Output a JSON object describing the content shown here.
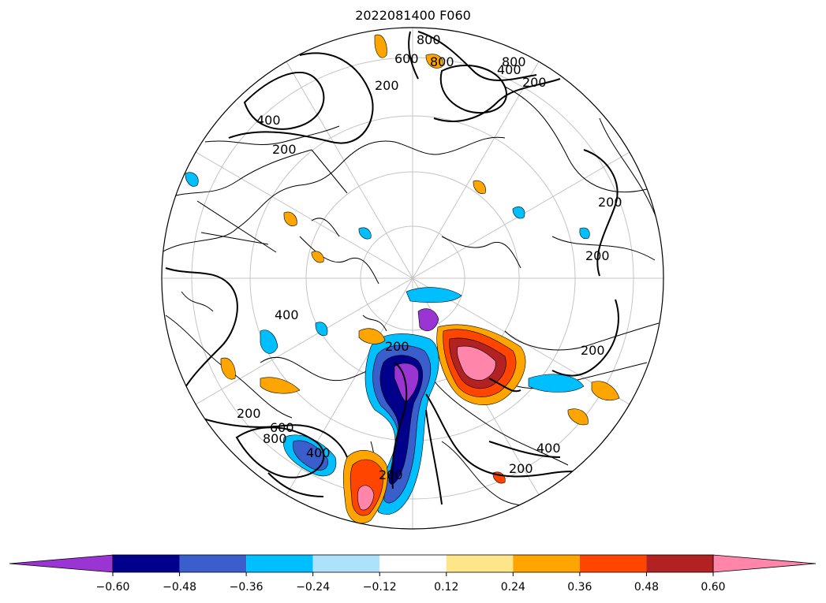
{
  "title": "2022081400 F060",
  "map": {
    "projection": "north-polar-stereographic",
    "contour_labels": [
      "800",
      "600",
      "800",
      "800",
      "400",
      "200",
      "200",
      "400",
      "200",
      "200",
      "200",
      "200",
      "400",
      "200",
      "200",
      "600",
      "800",
      "400",
      "200",
      "400",
      "200"
    ]
  },
  "colorbar": {
    "extend": "both",
    "tick_labels": [
      "−0.60",
      "−0.48",
      "−0.36",
      "−0.24",
      "−0.12",
      "0.12",
      "0.24",
      "0.36",
      "0.48",
      "0.60"
    ],
    "colors": [
      "#9a35d3",
      "#00008b",
      "#3a5fcd",
      "#00bfff",
      "#aee1fa",
      "#ffffff",
      "#fde68a",
      "#ffa500",
      "#ff4500",
      "#b22222",
      "#ff85aa"
    ]
  }
}
